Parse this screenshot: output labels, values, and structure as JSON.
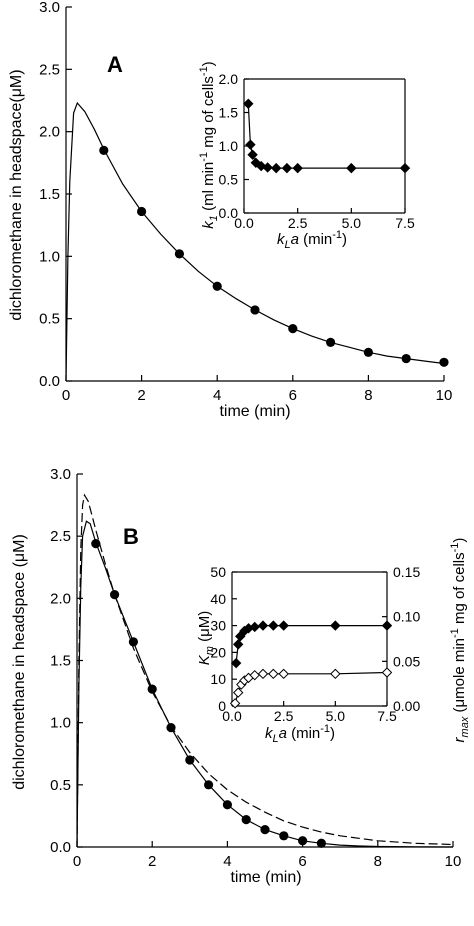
{
  "chart_data": [
    {
      "panel": "A",
      "type": "scatter",
      "panel_label": "A",
      "xlabel": "time (min)",
      "ylabel": "dichloromethane in headspace(μM)",
      "xlim": [
        0,
        10
      ],
      "ylim": [
        0,
        3.0
      ],
      "x_ticks": [
        0,
        2,
        4,
        6,
        8,
        10
      ],
      "x_tick_labels": [
        "0",
        "2",
        "4",
        "6",
        "8",
        "10"
      ],
      "y_ticks": [
        0,
        0.5,
        1.0,
        1.5,
        2.0,
        2.5,
        3.0
      ],
      "y_tick_labels": [
        "0.0",
        "0.5",
        "1.0",
        "1.5",
        "2.0",
        "2.5",
        "3.0"
      ],
      "series": [
        {
          "style": "filled-circle",
          "x": [
            1,
            2,
            3,
            4,
            5,
            6,
            7,
            8,
            9,
            10
          ],
          "y": [
            1.85,
            1.36,
            1.02,
            0.76,
            0.57,
            0.42,
            0.31,
            0.23,
            0.18,
            0.15
          ]
        },
        {
          "style": "solid-line",
          "x": [
            0,
            0.05,
            0.1,
            0.2,
            0.3,
            0.5,
            0.75,
            1,
            1.5,
            2,
            2.5,
            3,
            3.5,
            4,
            4.5,
            5,
            5.5,
            6,
            6.5,
            7,
            7.5,
            8,
            8.5,
            9,
            9.5,
            10
          ],
          "y": [
            0,
            1.0,
            1.6,
            2.15,
            2.23,
            2.16,
            2.02,
            1.86,
            1.58,
            1.36,
            1.18,
            1.02,
            0.88,
            0.76,
            0.66,
            0.57,
            0.49,
            0.42,
            0.36,
            0.31,
            0.27,
            0.23,
            0.2,
            0.18,
            0.16,
            0.14
          ]
        }
      ]
    },
    {
      "panel": "A-inset",
      "type": "line",
      "xlabel": "k_La (min⁻¹)",
      "ylabel": "k₁ (ml min⁻¹ mg of cells⁻¹)",
      "xlim": [
        0,
        7.5
      ],
      "ylim": [
        0,
        2.0
      ],
      "x_ticks": [
        0,
        2.5,
        5,
        7.5
      ],
      "x_tick_labels": [
        "0.0",
        "2.5",
        "5.0",
        "7.5"
      ],
      "y_ticks": [
        0,
        0.5,
        1.0,
        1.5,
        2.0
      ],
      "y_tick_labels": [
        "0.0",
        "0.5",
        "1.0",
        "1.5",
        "2.0"
      ],
      "series": [
        {
          "style": "filled-diamond-line",
          "x": [
            0.2,
            0.3,
            0.4,
            0.55,
            0.8,
            1.1,
            1.5,
            2.0,
            2.5,
            5.0,
            7.5
          ],
          "y": [
            1.63,
            1.02,
            0.87,
            0.75,
            0.7,
            0.68,
            0.67,
            0.67,
            0.67,
            0.67,
            0.67
          ]
        }
      ]
    },
    {
      "panel": "B",
      "type": "scatter",
      "panel_label": "B",
      "xlabel": "time (min)",
      "ylabel": "dichloromethane in headspace (μM)",
      "xlim": [
        0,
        10
      ],
      "ylim": [
        0,
        3.0
      ],
      "x_ticks": [
        0,
        2,
        4,
        6,
        8,
        10
      ],
      "x_tick_labels": [
        "0",
        "2",
        "4",
        "6",
        "8",
        "10"
      ],
      "y_ticks": [
        0,
        0.5,
        1.0,
        1.5,
        2.0,
        2.5,
        3.0
      ],
      "y_tick_labels": [
        "0.0",
        "0.5",
        "1.0",
        "1.5",
        "2.0",
        "2.5",
        "3.0"
      ],
      "series": [
        {
          "style": "filled-circle",
          "x": [
            0.5,
            1,
            1.5,
            2,
            2.5,
            3,
            3.5,
            4,
            4.5,
            5,
            5.5,
            6,
            6.5
          ],
          "y": [
            2.44,
            2.03,
            1.65,
            1.27,
            0.96,
            0.7,
            0.5,
            0.34,
            0.22,
            0.14,
            0.09,
            0.05,
            0.03
          ]
        },
        {
          "style": "solid-line",
          "x": [
            0,
            0.05,
            0.1,
            0.15,
            0.25,
            0.35,
            0.5,
            0.75,
            1,
            1.5,
            2,
            2.5,
            3,
            3.5,
            4,
            4.5,
            5,
            5.5,
            6,
            6.5,
            7,
            7.5,
            8,
            9,
            10
          ],
          "y": [
            0,
            1.3,
            2.1,
            2.5,
            2.62,
            2.6,
            2.45,
            2.25,
            2.03,
            1.65,
            1.27,
            0.96,
            0.7,
            0.5,
            0.34,
            0.22,
            0.14,
            0.09,
            0.05,
            0.03,
            0.015,
            0.008,
            0.004,
            0.001,
            0.0
          ]
        },
        {
          "style": "dashed-line",
          "x": [
            0,
            0.05,
            0.1,
            0.15,
            0.2,
            0.3,
            0.5,
            0.75,
            1,
            1.5,
            2,
            2.5,
            3,
            3.5,
            4,
            4.5,
            5,
            5.5,
            6,
            6.5,
            7,
            7.5,
            8,
            9,
            10
          ],
          "y": [
            0,
            1.5,
            2.4,
            2.75,
            2.83,
            2.78,
            2.55,
            2.28,
            2.03,
            1.6,
            1.25,
            0.97,
            0.76,
            0.59,
            0.46,
            0.36,
            0.28,
            0.21,
            0.16,
            0.12,
            0.09,
            0.07,
            0.05,
            0.03,
            0.02
          ]
        }
      ]
    },
    {
      "panel": "B-inset",
      "type": "line",
      "xlabel": "k_La (min⁻¹)",
      "ylabel": "K_m (μM)",
      "y2label": "r_max (μmole min⁻¹ mg of cells⁻¹)",
      "xlim": [
        0,
        7.5
      ],
      "ylim": [
        0,
        50
      ],
      "y2lim": [
        0,
        0.15
      ],
      "x_ticks": [
        0,
        2.5,
        5,
        7.5
      ],
      "x_tick_labels": [
        "0.0",
        "2.5",
        "5.0",
        "7.5"
      ],
      "y_ticks": [
        0,
        10,
        20,
        30,
        40,
        50
      ],
      "y_tick_labels": [
        "0",
        "10",
        "20",
        "30",
        "40",
        "50"
      ],
      "y2_ticks": [
        0,
        0.05,
        0.1,
        0.15
      ],
      "y2_tick_labels": [
        "0.00",
        "0.05",
        "0.10",
        "0.15"
      ],
      "series": [
        {
          "style": "filled-diamond-line",
          "axis": "left",
          "x": [
            0.2,
            0.3,
            0.4,
            0.6,
            0.8,
            1.1,
            1.5,
            2.0,
            2.5,
            5.0,
            7.5
          ],
          "y": [
            16,
            23,
            26,
            28,
            29,
            29.5,
            30,
            30,
            30,
            30,
            30
          ]
        },
        {
          "style": "open-diamond-line",
          "axis": "left",
          "x": [
            0.15,
            0.3,
            0.45,
            0.6,
            0.8,
            1.1,
            1.5,
            2.0,
            2.5,
            5.0,
            7.5
          ],
          "y": [
            1,
            5,
            8,
            9.5,
            10.5,
            11.5,
            12,
            12,
            12,
            12,
            12.5
          ]
        }
      ]
    }
  ]
}
